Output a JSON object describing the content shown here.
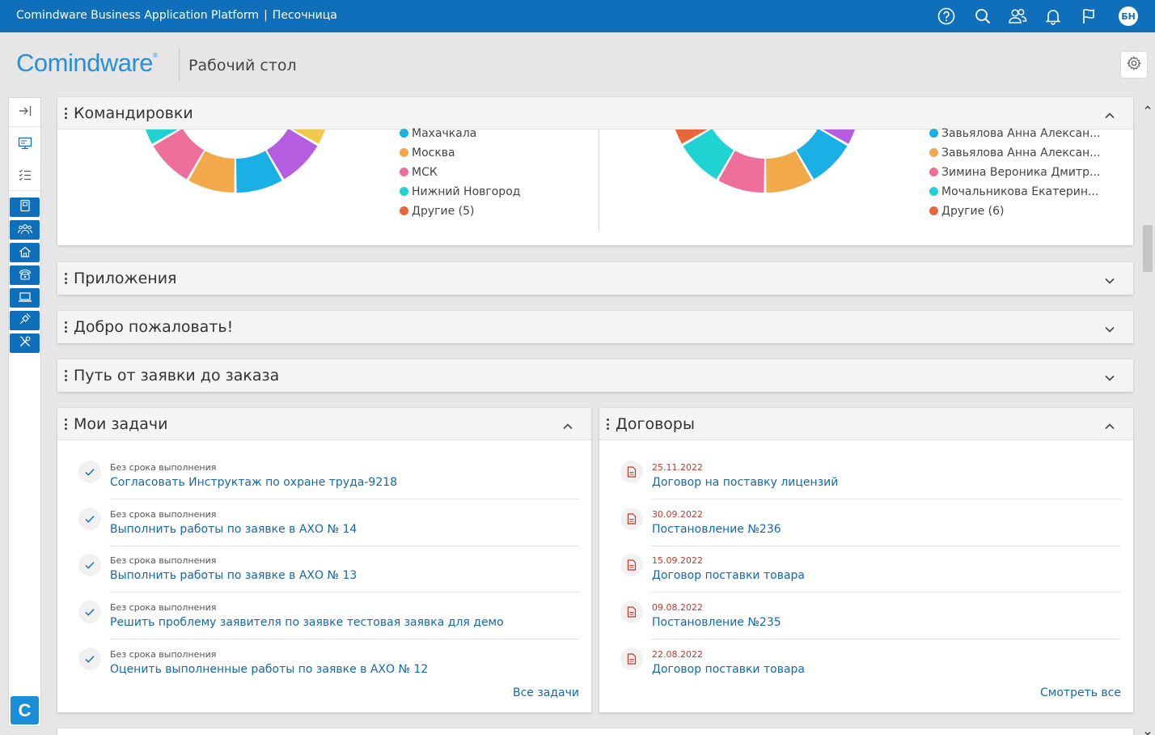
{
  "topbar": {
    "app_name": "Comindware Business Application Platform",
    "separator": "|",
    "workspace": "Песочница",
    "avatar_initials": "БН",
    "icons": [
      "help-icon",
      "search-icon",
      "users-icon",
      "bell-icon",
      "flag-icon"
    ]
  },
  "header": {
    "logo": "Comindware",
    "logo_mark": "®",
    "page_title": "Рабочий стол"
  },
  "sidebar": {
    "logo_letter": "C",
    "nav_icons": [
      "collapse-icon",
      "desktop-icon",
      "list-icon"
    ],
    "app_icons": [
      "book-icon",
      "people-icon",
      "home-icon",
      "phone-icon",
      "laptop-icon",
      "satellite-icon",
      "tools-icon"
    ]
  },
  "trips": {
    "title": "Командировки",
    "left_legend": [
      {
        "label": "Махачкала",
        "color": "#1ab0e5"
      },
      {
        "label": "Москва",
        "color": "#f2a94a"
      },
      {
        "label": "МСК",
        "color": "#ef6f9c"
      },
      {
        "label": "Нижний Новгород",
        "color": "#1fd3d3"
      },
      {
        "label": "Другие (5)",
        "color": "#e8673a"
      }
    ],
    "right_legend": [
      {
        "label": "Завьялова Анна Алексан...",
        "color": "#1ab0e5"
      },
      {
        "label": "Завьялова Анна Алексан...",
        "color": "#f2a94a"
      },
      {
        "label": "Зимина Вероника Дмитр...",
        "color": "#ef6f9c"
      },
      {
        "label": "Мочальникова Екатерин...",
        "color": "#1fd3d3"
      },
      {
        "label": "Другие (6)",
        "color": "#e8673a"
      }
    ]
  },
  "collapsed_panels": [
    {
      "title": "Приложения"
    },
    {
      "title": "Добро пожаловать!"
    },
    {
      "title": "Путь от заявки до заказа"
    }
  ],
  "tasks": {
    "title": "Мои задачи",
    "items": [
      {
        "meta": "Без срока выполнения",
        "name": "Согласовать Инструктаж по охране труда-9218"
      },
      {
        "meta": "Без срока выполнения",
        "name": "Выполнить работы по заявке в АХО № 14"
      },
      {
        "meta": "Без срока выполнения",
        "name": "Выполнить работы по заявке в АХО № 13"
      },
      {
        "meta": "Без срока выполнения",
        "name": "Решить проблему заявителя по заявке тестовая заявка для демо"
      },
      {
        "meta": "Без срока выполнения",
        "name": "Оценить выполненные работы по заявке в АХО № 12"
      }
    ],
    "all_link": "Все задачи"
  },
  "contracts": {
    "title": "Договоры",
    "items": [
      {
        "date": "25.11.2022",
        "name": "Договор на поставку лицензий"
      },
      {
        "date": "30.09.2022",
        "name": "Постановление №236"
      },
      {
        "date": "15.09.2022",
        "name": "Договор поставки товара"
      },
      {
        "date": "09.08.2022",
        "name": "Постановление №235"
      },
      {
        "date": "22.08.2022",
        "name": "Договор поставки товара"
      }
    ],
    "all_link": "Смотреть все"
  },
  "colors": {
    "topbar": "#0f6fba",
    "link": "#1468b0",
    "date": "#c0392b"
  }
}
